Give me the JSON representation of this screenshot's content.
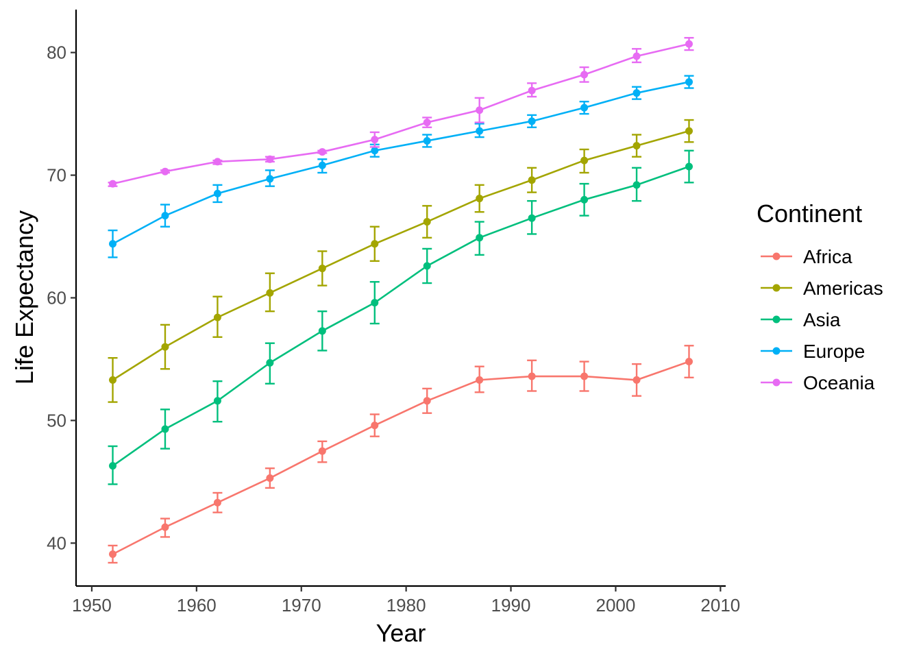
{
  "chart_data": {
    "type": "line",
    "xlabel": "Year",
    "ylabel": "Life Expectancy",
    "xlim": [
      1948.5,
      2010.5
    ],
    "ylim": [
      36.5,
      83.5
    ],
    "x_ticks": [
      1950,
      1960,
      1970,
      1980,
      1990,
      2000,
      2010
    ],
    "y_ticks": [
      40,
      50,
      60,
      70,
      80
    ],
    "x": [
      1952,
      1957,
      1962,
      1967,
      1972,
      1977,
      1982,
      1987,
      1992,
      1997,
      2002,
      2007
    ],
    "grid": false,
    "legend": {
      "title": "Continent",
      "position": "right"
    },
    "error_bars": true,
    "series": [
      {
        "name": "Africa",
        "color": "#F8766D",
        "values": [
          39.1,
          41.3,
          43.3,
          45.3,
          47.5,
          49.6,
          51.6,
          53.3,
          53.6,
          53.6,
          53.3,
          54.8
        ],
        "lower": [
          38.4,
          40.5,
          42.5,
          44.5,
          46.6,
          48.7,
          50.6,
          52.3,
          52.4,
          52.4,
          52.0,
          53.5
        ],
        "upper": [
          39.8,
          42.0,
          44.1,
          46.1,
          48.3,
          50.5,
          52.6,
          54.4,
          54.9,
          54.8,
          54.6,
          56.1
        ]
      },
      {
        "name": "Americas",
        "color": "#A3A500",
        "values": [
          53.3,
          56.0,
          58.4,
          60.4,
          62.4,
          64.4,
          66.2,
          68.1,
          69.6,
          71.2,
          72.4,
          73.6
        ],
        "lower": [
          51.5,
          54.2,
          56.8,
          58.9,
          61.0,
          63.0,
          64.9,
          67.0,
          68.6,
          70.2,
          71.5,
          72.7
        ],
        "upper": [
          55.1,
          57.8,
          60.1,
          62.0,
          63.8,
          65.8,
          67.5,
          69.2,
          70.6,
          72.1,
          73.3,
          74.5
        ]
      },
      {
        "name": "Asia",
        "color": "#00BF7D",
        "values": [
          46.3,
          49.3,
          51.6,
          54.7,
          57.3,
          59.6,
          62.6,
          64.9,
          66.5,
          68.0,
          69.2,
          70.7
        ],
        "lower": [
          44.8,
          47.7,
          49.9,
          53.0,
          55.7,
          57.9,
          61.2,
          63.5,
          65.2,
          66.7,
          67.9,
          69.4
        ],
        "upper": [
          47.9,
          50.9,
          53.2,
          56.3,
          58.9,
          61.3,
          64.0,
          66.2,
          67.9,
          69.3,
          70.6,
          72.0
        ]
      },
      {
        "name": "Europe",
        "color": "#00B0F6",
        "values": [
          64.4,
          66.7,
          68.5,
          69.7,
          70.8,
          72.0,
          72.8,
          73.6,
          74.4,
          75.5,
          76.7,
          77.6
        ],
        "lower": [
          63.3,
          65.8,
          67.8,
          69.1,
          70.2,
          71.5,
          72.3,
          73.1,
          73.9,
          75.0,
          76.2,
          77.1
        ],
        "upper": [
          65.5,
          67.6,
          69.2,
          70.4,
          71.3,
          72.5,
          73.3,
          74.2,
          74.9,
          76.0,
          77.2,
          78.1
        ]
      },
      {
        "name": "Oceania",
        "color": "#E76BF3",
        "values": [
          69.3,
          70.3,
          71.1,
          71.3,
          71.9,
          72.9,
          74.3,
          75.3,
          76.9,
          78.2,
          79.7,
          80.7
        ],
        "lower": [
          69.1,
          70.2,
          70.9,
          71.1,
          71.8,
          72.3,
          73.9,
          74.3,
          76.4,
          77.6,
          79.2,
          80.2
        ],
        "upper": [
          69.4,
          70.4,
          71.2,
          71.5,
          72.0,
          73.5,
          74.7,
          76.3,
          77.5,
          78.8,
          80.3,
          81.2
        ]
      }
    ]
  }
}
